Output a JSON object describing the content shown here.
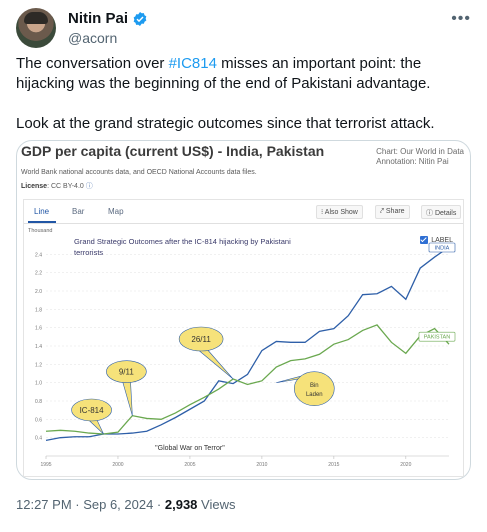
{
  "tweet": {
    "display_name": "Nitin Pai",
    "handle": "@acorn",
    "more_icon": "more-horizontal-icon",
    "verified_icon": "verified-badge-icon",
    "text_before_hashtag": "The conversation over ",
    "hashtag": "#IC814",
    "text_after_hashtag": " misses an important point: the hijacking was the beginning of the end of Pakistani advantage.",
    "text_second": "Look at the grand strategic outcomes since that terrorist attack.",
    "time": "12:27 PM · Sep 6, 2024 · ",
    "views": "2,938",
    "views_label": " Views"
  },
  "card": {
    "title": "GDP per capita (current US$) - India, Pakistan",
    "credit_line1": "Chart: Our World in Data",
    "credit_line2": "Annotation: Nitin Pai",
    "source": "World Bank national accounts data, and OECD National Accounts data files.",
    "license_label": "License",
    "license_value": ": CC BY-4.0",
    "tabs": [
      "Line",
      "Bar",
      "Map"
    ],
    "actions": {
      "also_show": "⁝ Also Show",
      "share": "⤤ Share",
      "details": "ⓘ Details"
    },
    "chart_heading": "Grand Strategic Outcomes after the IC-814 hijacking by Pakistani terrorists",
    "label_toggle": "LABEL",
    "y_unit": "Thousand"
  },
  "colors": {
    "india": "#2e5fa8",
    "pakistan": "#6aa84f",
    "bubble_fill": "#f6e27a",
    "bubble_stroke": "#2e5fa8",
    "accent": "#1d9bf0"
  },
  "chart_data": {
    "type": "line",
    "title": "Grand Strategic Outcomes after the IC-814 hijacking by Pakistani terrorists",
    "ylabel": "Thousand",
    "ylim": [
      0.2,
      2.6
    ],
    "xlim": [
      1995,
      2023
    ],
    "yticks": [
      "0.4",
      "0.6",
      "0.8",
      "1.0",
      "1.2",
      "1.4",
      "1.6",
      "1.8",
      "2.0",
      "2.2",
      "2.4"
    ],
    "xticks": [
      "1995",
      "2000",
      "2005",
      "2010",
      "2015",
      "2020"
    ],
    "grid": true,
    "series": [
      {
        "name": "INDIA",
        "x": [
          1995,
          1996,
          1997,
          1998,
          1999,
          2000,
          2001,
          2002,
          2003,
          2004,
          2005,
          2006,
          2007,
          2008,
          2009,
          2010,
          2011,
          2012,
          2013,
          2014,
          2015,
          2016,
          2017,
          2018,
          2019,
          2020,
          2021,
          2022,
          2023
        ],
        "values": [
          0.37,
          0.4,
          0.41,
          0.41,
          0.44,
          0.44,
          0.45,
          0.47,
          0.54,
          0.62,
          0.71,
          0.8,
          1.02,
          0.99,
          1.09,
          1.35,
          1.45,
          1.44,
          1.44,
          1.56,
          1.59,
          1.73,
          1.96,
          1.97,
          2.05,
          1.91,
          2.25,
          2.37,
          2.48
        ]
      },
      {
        "name": "PAKISTAN",
        "x": [
          1995,
          1996,
          1997,
          1998,
          1999,
          2000,
          2001,
          2002,
          2003,
          2004,
          2005,
          2006,
          2007,
          2008,
          2009,
          2010,
          2011,
          2012,
          2013,
          2014,
          2015,
          2016,
          2017,
          2018,
          2019,
          2020,
          2021,
          2022,
          2023
        ],
        "values": [
          0.47,
          0.48,
          0.47,
          0.45,
          0.44,
          0.46,
          0.64,
          0.61,
          0.6,
          0.67,
          0.76,
          0.84,
          0.93,
          1.04,
          0.98,
          1.02,
          1.17,
          1.24,
          1.26,
          1.31,
          1.42,
          1.47,
          1.57,
          1.63,
          1.44,
          1.32,
          1.51,
          1.59,
          1.42
        ]
      }
    ],
    "annotations": [
      {
        "text": "IC-814",
        "x": 1999,
        "y": 0.44
      },
      {
        "text": "9/11",
        "x": 2001,
        "y": 0.64
      },
      {
        "text": "26/11",
        "x": 2008,
        "y": 1.04
      },
      {
        "text": "Bin Laden",
        "x": 2011,
        "y": 1.0
      },
      {
        "text": "\"Global War on Terror\"",
        "x": 2005,
        "y": 0.3
      }
    ]
  }
}
